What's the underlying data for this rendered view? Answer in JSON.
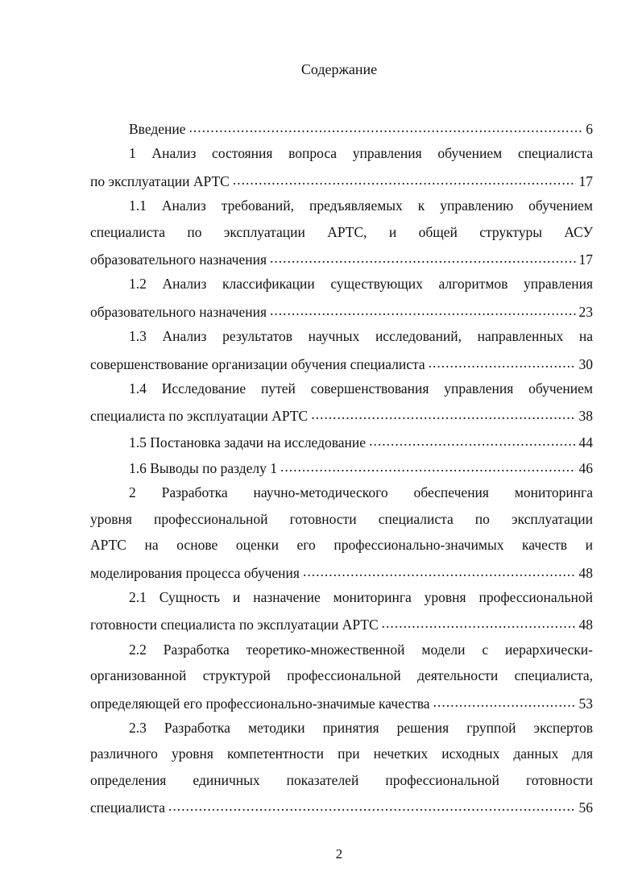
{
  "title": "Содержание",
  "entries": [
    {
      "lines": [
        "Введение"
      ],
      "page": "6"
    },
    {
      "lines": [
        "1 Анализ состояния вопроса управления обучением специалиста",
        "по эксплуатации АРТС"
      ],
      "page": "17"
    },
    {
      "lines": [
        "1.1 Анализ требований, предъявляемых к управлению обучением",
        "специалиста по эксплуатации АРТС, и общей структуры АСУ",
        "образовательного назначения"
      ],
      "page": "17"
    },
    {
      "lines": [
        "1.2 Анализ классификации существующих алгоритмов управления",
        "образовательного назначения"
      ],
      "page": "23"
    },
    {
      "lines": [
        "1.3  Анализ результатов научных исследований, направленных на",
        "совершенствование организации обучения специалиста"
      ],
      "page": "30"
    },
    {
      "lines": [
        "1.4 Исследование путей совершенствования управления обучением",
        "специалиста по эксплуатации АРТС"
      ],
      "page": "38"
    },
    {
      "lines": [
        "1.5 Постановка задачи на исследование"
      ],
      "page": "44"
    },
    {
      "lines": [
        "1.6 Выводы по разделу 1"
      ],
      "page": "46"
    },
    {
      "lines": [
        "2 Разработка научно-методического  обеспечения  мониторинга",
        "уровня профессиональной готовности специалиста по эксплуатации",
        "АРТС на основе оценки  его профессионально-значимых качеств и",
        "моделирования процесса обучения"
      ],
      "page": "48"
    },
    {
      "lines": [
        "2.1 Сущность и назначение мониторинга уровня профессиональной",
        "готовности специалиста по эксплуатации АРТС"
      ],
      "page": "48"
    },
    {
      "lines": [
        "2.2 Разработка теоретико-множественной модели с иерархически-",
        "организованной структурой профессиональной деятельности специалиста,",
        "определяющей его профессионально-значимые качества"
      ],
      "page": "53"
    },
    {
      "lines": [
        "2.3 Разработка  методики  принятия  решения  группой  экспертов",
        "различного уровня компетентности при нечетких исходных данных для",
        "определения  единичных  показателей  профессиональной  готовности",
        "специалиста"
      ],
      "page": "56"
    }
  ],
  "page_number": "2"
}
